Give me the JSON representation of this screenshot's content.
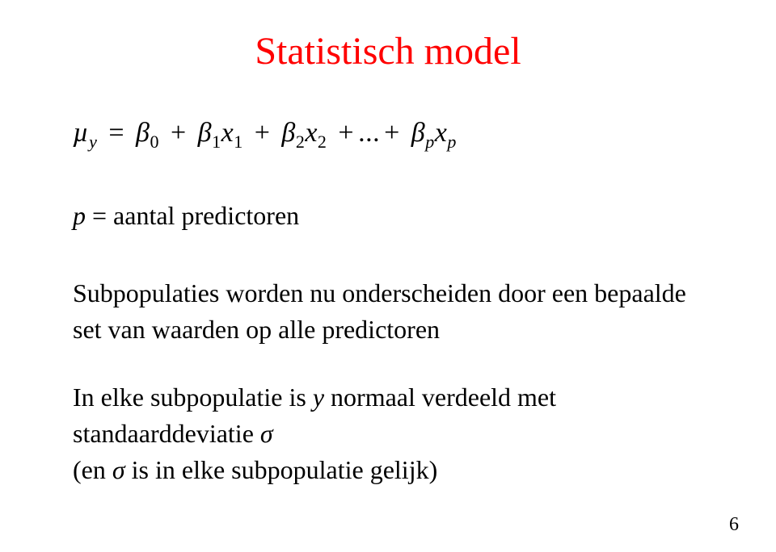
{
  "title": "Statistisch model",
  "equation": {
    "mu": "µ",
    "beta": "β",
    "x": "x",
    "eq": "=",
    "plus": "+",
    "dots": "...",
    "sub_y": "y",
    "sub_0": "0",
    "sub_1": "1",
    "sub_2": "2",
    "sub_p": "p"
  },
  "p_line": {
    "p": "p",
    "rest": " = aantal predictoren"
  },
  "para1": "Subpopulaties worden nu onderscheiden door een bepaalde set van waarden op alle predictoren",
  "para2": {
    "prefix": "In elke subpopulatie is ",
    "y": "y",
    "mid": " normaal verdeeld met standaarddeviatie ",
    "sigma1": "σ",
    "paren_open": "(en ",
    "sigma2": "σ",
    "paren_rest": " is in elke subpopulatie gelijk)"
  },
  "page_number": "6",
  "colors": {
    "title": "#ff0000",
    "text": "#000000",
    "background": "#ffffff"
  }
}
